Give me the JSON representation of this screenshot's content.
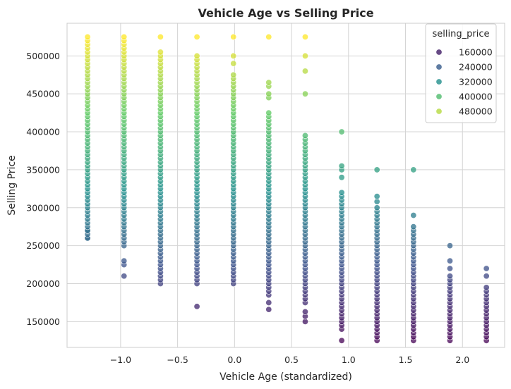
{
  "chart_data": {
    "type": "scatter",
    "title": "Vehicle Age vs Selling Price",
    "xlabel": "Vehicle Age (standardized)",
    "ylabel": "Selling Price",
    "xlim": [
      -1.47,
      2.37
    ],
    "ylim": [
      116000,
      543000
    ],
    "x_ticks": [
      -1.0,
      -0.5,
      0.0,
      0.5,
      1.0,
      1.5,
      2.0
    ],
    "x_tick_labels": [
      "−1.0",
      "−0.5",
      "0.0",
      "0.5",
      "1.0",
      "1.5",
      "2.0"
    ],
    "y_ticks": [
      150000,
      200000,
      250000,
      300000,
      350000,
      400000,
      450000,
      500000
    ],
    "y_tick_labels": [
      "150000",
      "200000",
      "250000",
      "300000",
      "350000",
      "400000",
      "450000",
      "500000"
    ],
    "grid": true,
    "colormap": "viridis",
    "color_range": [
      125000,
      525000
    ],
    "legend": {
      "title": "selling_price",
      "placement": "top-right",
      "entries": [
        {
          "label": "160000",
          "value": 160000
        },
        {
          "label": "240000",
          "value": 240000
        },
        {
          "label": "320000",
          "value": 320000
        },
        {
          "label": "400000",
          "value": 400000
        },
        {
          "label": "480000",
          "value": 480000
        }
      ]
    },
    "groups": [
      {
        "x": -1.29,
        "y_min": 260000,
        "y_max": 525000,
        "step": 5000,
        "extra": [
          260000,
          270000
        ]
      },
      {
        "x": -0.97,
        "y_min": 250000,
        "y_max": 525000,
        "step": 5000,
        "extra": [
          210000,
          225000,
          230000
        ]
      },
      {
        "x": -0.65,
        "y_min": 200000,
        "y_max": 505000,
        "step": 5000,
        "extra": [
          525000
        ]
      },
      {
        "x": -0.33,
        "y_min": 200000,
        "y_max": 500000,
        "step": 5000,
        "extra": [
          170000,
          525000
        ]
      },
      {
        "x": -0.01,
        "y_min": 200000,
        "y_max": 475000,
        "step": 5000,
        "extra": [
          490000,
          500000,
          525000
        ]
      },
      {
        "x": 0.3,
        "y_min": 185000,
        "y_max": 415000,
        "step": 5000,
        "extra": [
          166000,
          175000,
          420000,
          425000,
          445000,
          450000,
          460000,
          465000,
          525000
        ]
      },
      {
        "x": 0.62,
        "y_min": 175000,
        "y_max": 395000,
        "step": 5000,
        "extra": [
          150000,
          157000,
          163000,
          450000,
          480000,
          500000,
          525000
        ]
      },
      {
        "x": 0.94,
        "y_min": 140000,
        "y_max": 320000,
        "step": 5000,
        "extra": [
          125000,
          340000,
          350000,
          355000,
          400000
        ]
      },
      {
        "x": 1.25,
        "y_min": 130000,
        "y_max": 300000,
        "step": 5000,
        "extra": [
          125000,
          308000,
          315000,
          350000
        ]
      },
      {
        "x": 1.57,
        "y_min": 130000,
        "y_max": 275000,
        "step": 5000,
        "extra": [
          125000,
          290000,
          350000
        ]
      },
      {
        "x": 1.89,
        "y_min": 125000,
        "y_max": 210000,
        "step": 5000,
        "extra": [
          220000,
          230000,
          250000
        ]
      },
      {
        "x": 2.21,
        "y_min": 125000,
        "y_max": 195000,
        "step": 5000,
        "extra": [
          210000,
          220000
        ]
      }
    ]
  }
}
